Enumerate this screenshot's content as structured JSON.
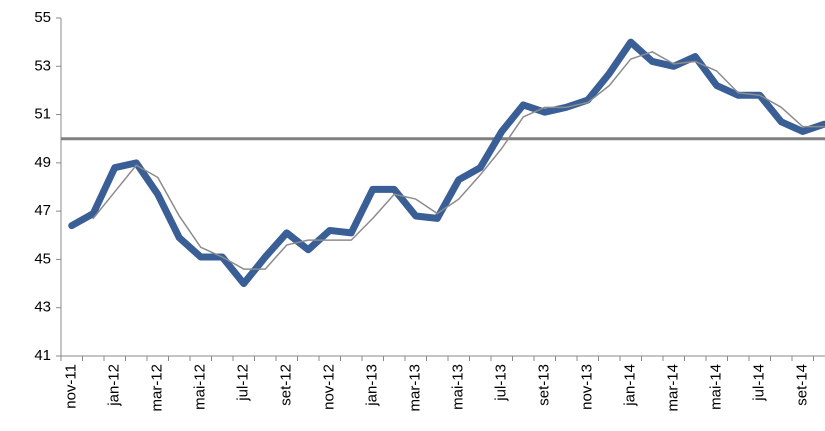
{
  "chart_data": {
    "type": "line",
    "categories": [
      "nov-11",
      null,
      "jan-12",
      null,
      "mar-12",
      null,
      "mai-12",
      null,
      "jul-12",
      null,
      "set-12",
      null,
      "nov-12",
      null,
      "jan-13",
      null,
      "mar-13",
      null,
      "mai-13",
      null,
      "jul-13",
      null,
      "set-13",
      null,
      "nov-13",
      null,
      "jan-14",
      null,
      "mar-14",
      null,
      "mai-14",
      null,
      "jul-14",
      null,
      "set-14",
      null
    ],
    "series": [
      {
        "color": "#3a5f96",
        "width": 7,
        "values": [
          46.4,
          46.9,
          48.8,
          49.0,
          47.7,
          45.9,
          45.1,
          45.1,
          44.0,
          45.1,
          46.1,
          45.4,
          46.2,
          46.1,
          47.9,
          47.9,
          46.8,
          46.7,
          48.3,
          48.8,
          50.3,
          51.4,
          51.1,
          51.3,
          51.6,
          52.7,
          54.0,
          53.2,
          53.0,
          53.4,
          52.2,
          51.8,
          51.8,
          50.7,
          50.3,
          50.6
        ]
      },
      {
        "color": "#8c8c8c",
        "width": 1.5,
        "values": [
          null,
          46.7,
          47.8,
          48.9,
          48.4,
          46.8,
          45.5,
          45.1,
          44.6,
          44.6,
          45.6,
          45.8,
          45.8,
          45.8,
          46.7,
          47.7,
          47.5,
          46.9,
          47.5,
          48.5,
          49.6,
          50.9,
          51.3,
          51.3,
          51.5,
          52.2,
          53.3,
          53.6,
          53.1,
          53.2,
          52.8,
          51.9,
          51.8,
          51.3,
          50.5,
          50.5
        ]
      }
    ],
    "reference_line": 50,
    "reference_color": "#808080",
    "ylim": [
      41,
      55
    ],
    "yticks": [
      41,
      43,
      45,
      47,
      49,
      51,
      53,
      55
    ]
  }
}
